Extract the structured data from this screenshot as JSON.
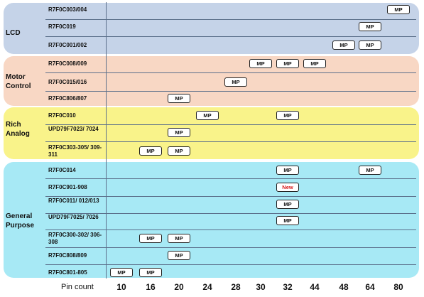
{
  "colors": {
    "lcd": "#c5d3e8",
    "motor": "#f8d7c4",
    "analog": "#f9f38a",
    "general": "#a7e9f5"
  },
  "groups": [
    {
      "label": "LCD",
      "rows": [
        {
          "label": "R7F0C003/004",
          "badges": [
            {
              "text": "MP",
              "pin": "80"
            }
          ]
        },
        {
          "label": "R7F0C019",
          "badges": [
            {
              "text": "MP",
              "pin": "64"
            }
          ]
        },
        {
          "label": "R7F0C001/002",
          "badges": [
            {
              "text": "MP",
              "pin": "48"
            },
            {
              "text": "MP",
              "pin": "64"
            }
          ]
        }
      ]
    },
    {
      "label": "Motor Control",
      "rows": [
        {
          "label": "R7F0C008/009",
          "badges": [
            {
              "text": "MP",
              "pin": "30"
            },
            {
              "text": "MP",
              "pin": "32"
            },
            {
              "text": "MP",
              "pin": "44"
            }
          ]
        },
        {
          "label": "R7F0C015/016",
          "badges": [
            {
              "text": "MP",
              "pin": "28"
            }
          ]
        },
        {
          "label": "R7F0C806/807",
          "badges": [
            {
              "text": "MP",
              "pin": "20"
            }
          ]
        }
      ]
    },
    {
      "label": "Rich Analog",
      "rows": [
        {
          "label": "R7F0C010",
          "badges": [
            {
              "text": "MP",
              "pin": "24"
            },
            {
              "text": "MP",
              "pin": "32"
            }
          ]
        },
        {
          "label": "UPD79F7023/ 7024",
          "badges": [
            {
              "text": "MP",
              "pin": "20"
            }
          ]
        },
        {
          "label": "R7F0C303-305/ 309-311",
          "badges": [
            {
              "text": "MP",
              "pin": "16"
            },
            {
              "text": "MP",
              "pin": "20"
            }
          ]
        }
      ]
    },
    {
      "label": "General Purpose",
      "rows": [
        {
          "label": "R7F0C014",
          "badges": [
            {
              "text": "MP",
              "pin": "32"
            },
            {
              "text": "MP",
              "pin": "64"
            }
          ]
        },
        {
          "label": "R7F0C901-908",
          "badges": [
            {
              "text": "New",
              "pin": "32"
            }
          ]
        },
        {
          "label": "R7F0C011/ 012/013",
          "badges": [
            {
              "text": "MP",
              "pin": "32"
            }
          ]
        },
        {
          "label": "UPD79F7025/ 7026",
          "badges": [
            {
              "text": "MP",
              "pin": "32"
            }
          ]
        },
        {
          "label": "R7F0C300-302/ 306-308",
          "badges": [
            {
              "text": "MP",
              "pin": "16"
            },
            {
              "text": "MP",
              "pin": "20"
            }
          ]
        },
        {
          "label": "R7F0C808/809",
          "badges": [
            {
              "text": "MP",
              "pin": "20"
            }
          ]
        },
        {
          "label": "R7F0C801-805",
          "badges": [
            {
              "text": "MP",
              "pin": "10"
            },
            {
              "text": "MP",
              "pin": "16"
            }
          ]
        }
      ]
    }
  ],
  "axis": {
    "title": "Pin count",
    "ticks": [
      "10",
      "16",
      "20",
      "24",
      "28",
      "30",
      "32",
      "44",
      "48",
      "64",
      "80"
    ]
  }
}
